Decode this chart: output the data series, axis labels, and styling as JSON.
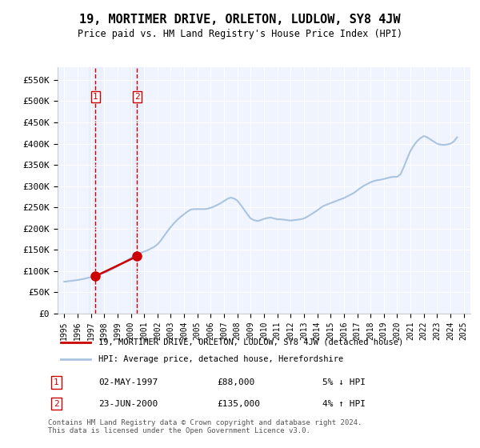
{
  "title": "19, MORTIMER DRIVE, ORLETON, LUDLOW, SY8 4JW",
  "subtitle": "Price paid vs. HM Land Registry's House Price Index (HPI)",
  "ylabel_ticks": [
    "£0",
    "£50K",
    "£100K",
    "£150K",
    "£200K",
    "£250K",
    "£300K",
    "£350K",
    "£400K",
    "£450K",
    "£500K",
    "£550K"
  ],
  "ytick_values": [
    0,
    50000,
    100000,
    150000,
    200000,
    250000,
    300000,
    350000,
    400000,
    450000,
    500000,
    550000
  ],
  "ylim": [
    0,
    580000
  ],
  "background_color": "#ffffff",
  "plot_bg_color": "#f0f4ff",
  "grid_color": "#ffffff",
  "hpi_color": "#aac4e0",
  "price_color": "#cc0000",
  "legend_label_price": "19, MORTIMER DRIVE, ORLETON, LUDLOW, SY8 4JW (detached house)",
  "legend_label_hpi": "HPI: Average price, detached house, Herefordshire",
  "transactions": [
    {
      "label": "1",
      "date": "02-MAY-1997",
      "price": 88000,
      "pct": "5%",
      "dir": "↓",
      "x_year": 1997.33
    },
    {
      "label": "2",
      "date": "23-JUN-2000",
      "price": 135000,
      "pct": "4%",
      "dir": "↑",
      "x_year": 2000.47
    }
  ],
  "footer": "Contains HM Land Registry data © Crown copyright and database right 2024.\nThis data is licensed under the Open Government Licence v3.0.",
  "hpi_data_x": [
    1995.0,
    1995.25,
    1995.5,
    1995.75,
    1996.0,
    1996.25,
    1996.5,
    1996.75,
    1997.0,
    1997.25,
    1997.5,
    1997.75,
    1998.0,
    1998.25,
    1998.5,
    1998.75,
    1999.0,
    1999.25,
    1999.5,
    1999.75,
    2000.0,
    2000.25,
    2000.5,
    2000.75,
    2001.0,
    2001.25,
    2001.5,
    2001.75,
    2002.0,
    2002.25,
    2002.5,
    2002.75,
    2003.0,
    2003.25,
    2003.5,
    2003.75,
    2004.0,
    2004.25,
    2004.5,
    2004.75,
    2005.0,
    2005.25,
    2005.5,
    2005.75,
    2006.0,
    2006.25,
    2006.5,
    2006.75,
    2007.0,
    2007.25,
    2007.5,
    2007.75,
    2008.0,
    2008.25,
    2008.5,
    2008.75,
    2009.0,
    2009.25,
    2009.5,
    2009.75,
    2010.0,
    2010.25,
    2010.5,
    2010.75,
    2011.0,
    2011.25,
    2011.5,
    2011.75,
    2012.0,
    2012.25,
    2012.5,
    2012.75,
    2013.0,
    2013.25,
    2013.5,
    2013.75,
    2014.0,
    2014.25,
    2014.5,
    2014.75,
    2015.0,
    2015.25,
    2015.5,
    2015.75,
    2016.0,
    2016.25,
    2016.5,
    2016.75,
    2017.0,
    2017.25,
    2017.5,
    2017.75,
    2018.0,
    2018.25,
    2018.5,
    2018.75,
    2019.0,
    2019.25,
    2019.5,
    2019.75,
    2020.0,
    2020.25,
    2020.5,
    2020.75,
    2021.0,
    2021.25,
    2021.5,
    2021.75,
    2022.0,
    2022.25,
    2022.5,
    2022.75,
    2023.0,
    2023.25,
    2023.5,
    2023.75,
    2024.0,
    2024.25,
    2024.5
  ],
  "hpi_data_y": [
    75000,
    76000,
    77000,
    78000,
    79000,
    80500,
    82000,
    84000,
    86000,
    88000,
    91000,
    93000,
    96000,
    99000,
    103000,
    107000,
    111000,
    116000,
    121000,
    126000,
    131000,
    136000,
    140000,
    143000,
    146000,
    149000,
    153000,
    157000,
    163000,
    172000,
    183000,
    194000,
    204000,
    213000,
    221000,
    228000,
    234000,
    240000,
    245000,
    246000,
    246000,
    246000,
    246000,
    247000,
    249000,
    252000,
    256000,
    260000,
    265000,
    270000,
    273000,
    271000,
    266000,
    256000,
    245000,
    234000,
    224000,
    220000,
    218000,
    220000,
    223000,
    225000,
    226000,
    224000,
    222000,
    222000,
    221000,
    220000,
    219000,
    220000,
    221000,
    222000,
    224000,
    228000,
    233000,
    238000,
    243000,
    249000,
    254000,
    257000,
    260000,
    263000,
    266000,
    269000,
    272000,
    276000,
    280000,
    284000,
    290000,
    296000,
    301000,
    305000,
    309000,
    312000,
    314000,
    315000,
    317000,
    319000,
    321000,
    322000,
    322000,
    328000,
    345000,
    365000,
    383000,
    396000,
    406000,
    413000,
    418000,
    415000,
    410000,
    405000,
    400000,
    398000,
    397000,
    398000,
    400000,
    405000,
    415000
  ],
  "price_data_x": [
    1997.33,
    2000.47
  ],
  "price_data_y": [
    88000,
    135000
  ],
  "xlim_left": 1994.5,
  "xlim_right": 2025.5,
  "xtick_years": [
    1995,
    1996,
    1997,
    1998,
    1999,
    2000,
    2001,
    2002,
    2003,
    2004,
    2005,
    2006,
    2007,
    2008,
    2009,
    2010,
    2011,
    2012,
    2013,
    2014,
    2015,
    2016,
    2017,
    2018,
    2019,
    2020,
    2021,
    2022,
    2023,
    2024,
    2025
  ],
  "vline_color": "#cc0000",
  "vline_x": [
    1997.33,
    2000.47
  ],
  "shade_color": "#dce8f5",
  "marker_color": "#cc0000",
  "marker_size": 8
}
